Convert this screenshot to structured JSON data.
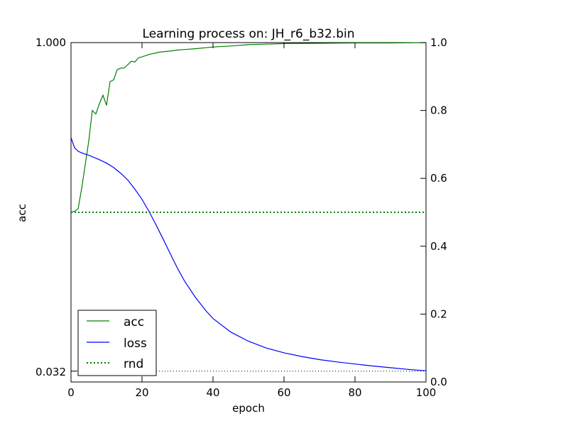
{
  "chart_data": {
    "type": "line",
    "title": "Learning process on: JH_r6_b32.bin",
    "xlabel": "epoch",
    "ylabel": "acc",
    "xlim": [
      0,
      100
    ],
    "xticks": [
      "0",
      "20",
      "40",
      "60",
      "80",
      "100"
    ],
    "y_left_ticks": [
      "0.032",
      "1.000"
    ],
    "y_right_lim": [
      0.0,
      1.0
    ],
    "y_right_ticks": [
      "0.0",
      "0.2",
      "0.4",
      "0.6",
      "0.8",
      "1.0"
    ],
    "legend_position": "lower-left",
    "legend": [
      {
        "label": "acc",
        "color": "#008000",
        "style": "solid"
      },
      {
        "label": "loss",
        "color": "#0000ff",
        "style": "solid"
      },
      {
        "label": "rnd",
        "color": "#008000",
        "style": "dotted"
      }
    ],
    "series": [
      {
        "name": "acc",
        "axis": "right",
        "color": "#008000",
        "x": [
          0,
          1,
          2,
          3,
          4,
          5,
          6,
          7,
          8,
          9,
          10,
          11,
          12,
          13,
          14,
          15,
          16,
          17,
          18,
          19,
          20,
          22,
          25,
          28,
          30,
          35,
          40,
          45,
          50,
          60,
          70,
          80,
          90,
          100
        ],
        "y": [
          0.5,
          0.503,
          0.51,
          0.57,
          0.64,
          0.71,
          0.8,
          0.79,
          0.82,
          0.845,
          0.815,
          0.885,
          0.89,
          0.92,
          0.925,
          0.925,
          0.935,
          0.945,
          0.943,
          0.955,
          0.958,
          0.965,
          0.972,
          0.975,
          0.978,
          0.982,
          0.987,
          0.99,
          0.994,
          0.997,
          0.998,
          0.999,
          0.999,
          1.0
        ]
      },
      {
        "name": "loss",
        "axis": "right",
        "color": "#0000ff",
        "x": [
          0,
          1,
          2,
          3,
          5,
          8,
          10,
          12,
          14,
          16,
          18,
          20,
          22,
          24,
          26,
          28,
          30,
          32,
          35,
          38,
          40,
          45,
          50,
          55,
          60,
          65,
          70,
          75,
          80,
          85,
          90,
          95,
          100
        ],
        "y": [
          0.72,
          0.69,
          0.68,
          0.675,
          0.668,
          0.655,
          0.645,
          0.632,
          0.615,
          0.595,
          0.568,
          0.538,
          0.502,
          0.462,
          0.42,
          0.377,
          0.335,
          0.297,
          0.25,
          0.21,
          0.187,
          0.147,
          0.12,
          0.1,
          0.086,
          0.075,
          0.066,
          0.059,
          0.053,
          0.047,
          0.042,
          0.037,
          0.033
        ]
      },
      {
        "name": "rnd",
        "axis": "right",
        "color": "#008000",
        "style": "dotted",
        "x": [
          0,
          100
        ],
        "y": [
          0.5,
          0.5
        ]
      },
      {
        "axis": "right",
        "color": "#000000",
        "style": "dotted",
        "x": [
          0,
          100
        ],
        "y": [
          0.032,
          0.032
        ]
      }
    ]
  }
}
